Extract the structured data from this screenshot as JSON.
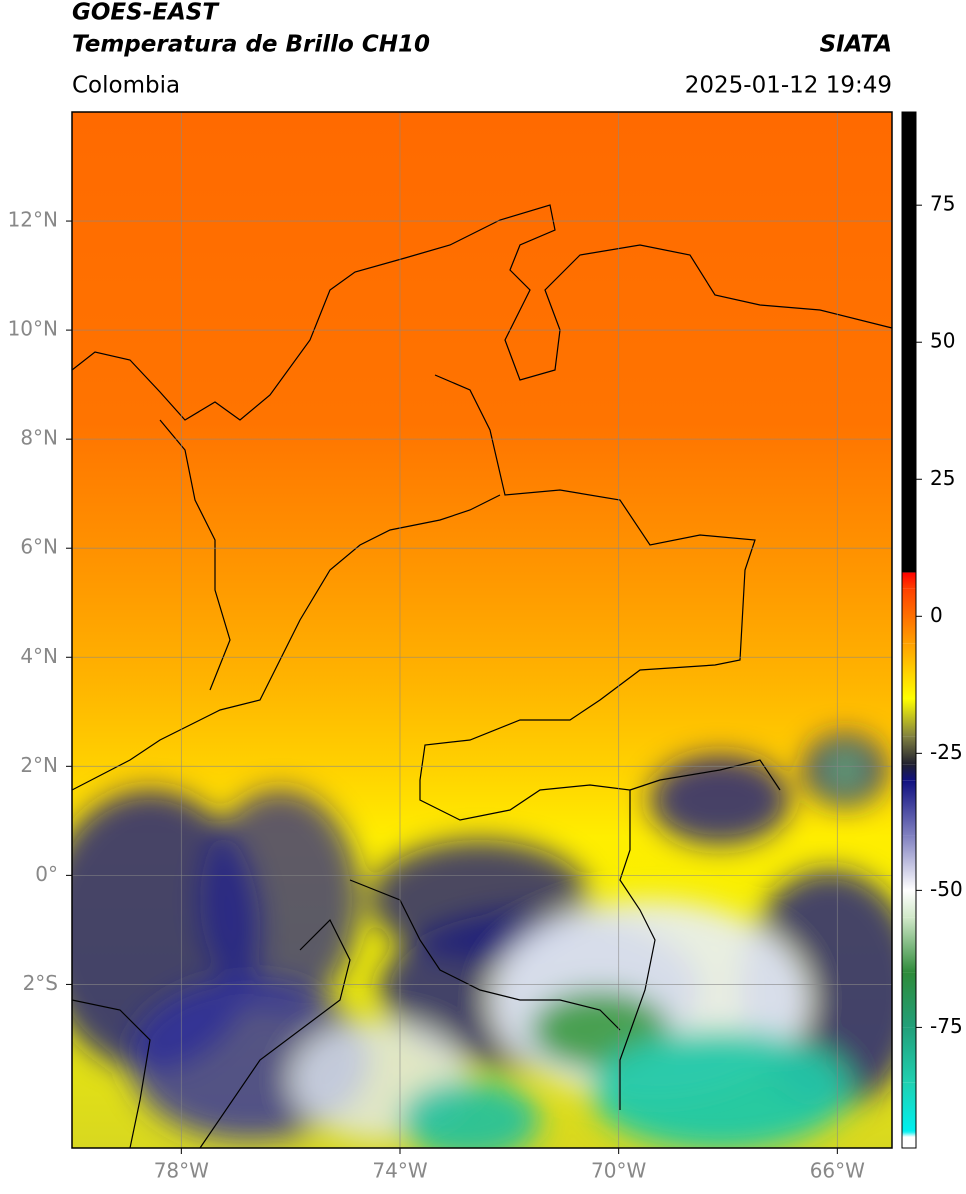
{
  "header": {
    "title": "GOES-EAST",
    "subtitle": "Temperatura de Brillo CH10",
    "source": "SIATA",
    "region": "Colombia",
    "timestamp": "2025-01-12 19:49"
  },
  "map": {
    "xlim": [
      -80,
      -65
    ],
    "ylim": [
      -5,
      14
    ],
    "xticks": [
      {
        "value": -78,
        "label": "78°W"
      },
      {
        "value": -74,
        "label": "74°W"
      },
      {
        "value": -70,
        "label": "70°W"
      },
      {
        "value": -66,
        "label": "66°W"
      }
    ],
    "yticks": [
      {
        "value": 12,
        "label": "12°N"
      },
      {
        "value": 10,
        "label": "10°N"
      },
      {
        "value": 8,
        "label": "8°N"
      },
      {
        "value": 6,
        "label": "6°N"
      },
      {
        "value": 4,
        "label": "4°N"
      },
      {
        "value": 2,
        "label": "2°N"
      },
      {
        "value": 0,
        "label": "0°"
      },
      {
        "value": -2,
        "label": "2°S"
      }
    ],
    "grid": true
  },
  "colorbar": {
    "lim": [
      -97,
      92
    ],
    "ticks": [
      75,
      50,
      25,
      0,
      -25,
      -50,
      -75
    ],
    "stops": [
      {
        "value": -97,
        "color": "#ffffff"
      },
      {
        "value": -95,
        "color": "#ffffff"
      },
      {
        "value": -94,
        "color": "#00f0f0"
      },
      {
        "value": -85,
        "color": "#20d0b0"
      },
      {
        "value": -75,
        "color": "#22a07a"
      },
      {
        "value": -65,
        "color": "#2e8b3a"
      },
      {
        "value": -55,
        "color": "#d0e8c8"
      },
      {
        "value": -50,
        "color": "#ffffff"
      },
      {
        "value": -40,
        "color": "#8080c0"
      },
      {
        "value": -30,
        "color": "#101080"
      },
      {
        "value": -27,
        "color": "#202030"
      },
      {
        "value": -22,
        "color": "#808040"
      },
      {
        "value": -15,
        "color": "#ffff00"
      },
      {
        "value": -5,
        "color": "#ffa000"
      },
      {
        "value": 5,
        "color": "#ff4000"
      },
      {
        "value": 8,
        "color": "#ff0000"
      },
      {
        "value": 8,
        "color": "#000000"
      },
      {
        "value": 92,
        "color": "#000000"
      }
    ]
  }
}
